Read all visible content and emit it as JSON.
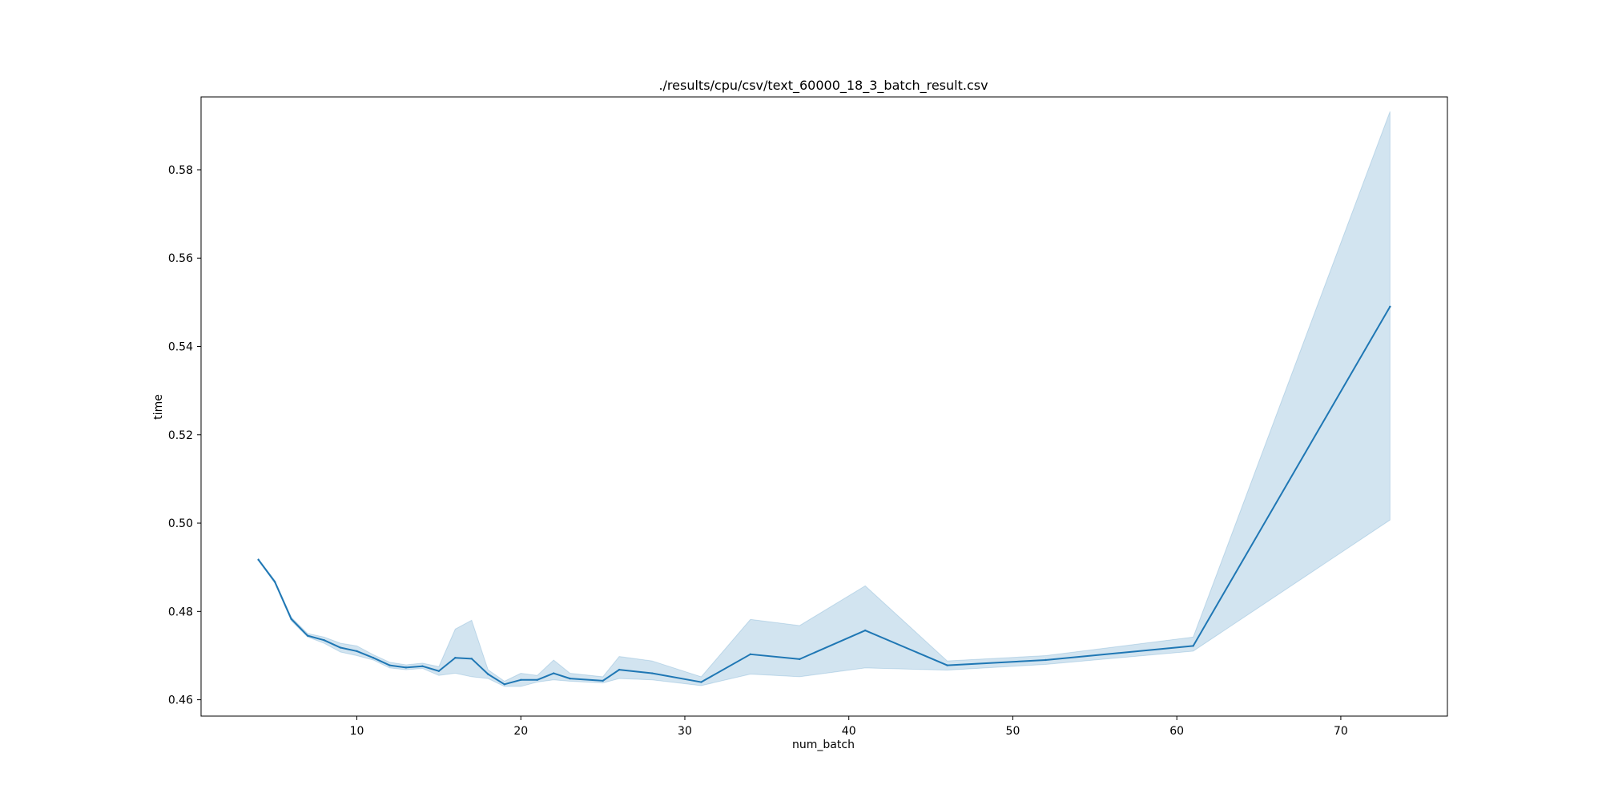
{
  "chart_data": {
    "type": "line",
    "title": "./results/cpu/csv/text_60000_18_3_batch_result.csv",
    "xlabel": "num_batch",
    "ylabel": "time",
    "xlim": [
      0.5,
      76.5
    ],
    "ylim": [
      0.4563,
      0.5965
    ],
    "xticks": [
      10,
      20,
      30,
      40,
      50,
      60,
      70
    ],
    "xtick_labels": [
      "10",
      "20",
      "30",
      "40",
      "50",
      "60",
      "70"
    ],
    "yticks": [
      0.46,
      0.48,
      0.5,
      0.52,
      0.54,
      0.56,
      0.58
    ],
    "ytick_labels": [
      "0.46",
      "0.48",
      "0.50",
      "0.52",
      "0.54",
      "0.56",
      "0.58"
    ],
    "grid": false,
    "series": [
      {
        "color": "#1f77b4",
        "band_color": "#1f77b4",
        "points": [
          {
            "x": 4,
            "y": 0.4917,
            "lo": 0.4915,
            "hi": 0.4919
          },
          {
            "x": 5,
            "y": 0.4867,
            "lo": 0.4864,
            "hi": 0.487
          },
          {
            "x": 6,
            "y": 0.4783,
            "lo": 0.4779,
            "hi": 0.4787
          },
          {
            "x": 7,
            "y": 0.4745,
            "lo": 0.4742,
            "hi": 0.475
          },
          {
            "x": 8,
            "y": 0.4735,
            "lo": 0.4728,
            "hi": 0.4742
          },
          {
            "x": 9,
            "y": 0.4718,
            "lo": 0.4708,
            "hi": 0.4728
          },
          {
            "x": 10,
            "y": 0.471,
            "lo": 0.47,
            "hi": 0.4722
          },
          {
            "x": 11,
            "y": 0.4695,
            "lo": 0.469,
            "hi": 0.4702
          },
          {
            "x": 12,
            "y": 0.4678,
            "lo": 0.4672,
            "hi": 0.4685
          },
          {
            "x": 13,
            "y": 0.4673,
            "lo": 0.4668,
            "hi": 0.4679
          },
          {
            "x": 14,
            "y": 0.4676,
            "lo": 0.4671,
            "hi": 0.4683
          },
          {
            "x": 15,
            "y": 0.4665,
            "lo": 0.4655,
            "hi": 0.4675
          },
          {
            "x": 16,
            "y": 0.4695,
            "lo": 0.466,
            "hi": 0.476
          },
          {
            "x": 17,
            "y": 0.4693,
            "lo": 0.4652,
            "hi": 0.478
          },
          {
            "x": 18,
            "y": 0.4658,
            "lo": 0.4648,
            "hi": 0.4668
          },
          {
            "x": 19,
            "y": 0.4635,
            "lo": 0.463,
            "hi": 0.4642
          },
          {
            "x": 20,
            "y": 0.4645,
            "lo": 0.463,
            "hi": 0.466
          },
          {
            "x": 21,
            "y": 0.4645,
            "lo": 0.464,
            "hi": 0.4655
          },
          {
            "x": 22,
            "y": 0.466,
            "lo": 0.4645,
            "hi": 0.469
          },
          {
            "x": 23,
            "y": 0.4648,
            "lo": 0.4642,
            "hi": 0.466
          },
          {
            "x": 25,
            "y": 0.4643,
            "lo": 0.4638,
            "hi": 0.4652
          },
          {
            "x": 26,
            "y": 0.4668,
            "lo": 0.4648,
            "hi": 0.4698
          },
          {
            "x": 28,
            "y": 0.466,
            "lo": 0.4645,
            "hi": 0.4688
          },
          {
            "x": 31,
            "y": 0.464,
            "lo": 0.4632,
            "hi": 0.4652
          },
          {
            "x": 34,
            "y": 0.4703,
            "lo": 0.4658,
            "hi": 0.4782
          },
          {
            "x": 37,
            "y": 0.4692,
            "lo": 0.4652,
            "hi": 0.4768
          },
          {
            "x": 41,
            "y": 0.4757,
            "lo": 0.4672,
            "hi": 0.4858
          },
          {
            "x": 46,
            "y": 0.4678,
            "lo": 0.4667,
            "hi": 0.4688
          },
          {
            "x": 52,
            "y": 0.469,
            "lo": 0.468,
            "hi": 0.47
          },
          {
            "x": 61,
            "y": 0.4722,
            "lo": 0.471,
            "hi": 0.4742
          },
          {
            "x": 73,
            "y": 0.549,
            "lo": 0.5007,
            "hi": 0.5932
          }
        ]
      }
    ]
  }
}
